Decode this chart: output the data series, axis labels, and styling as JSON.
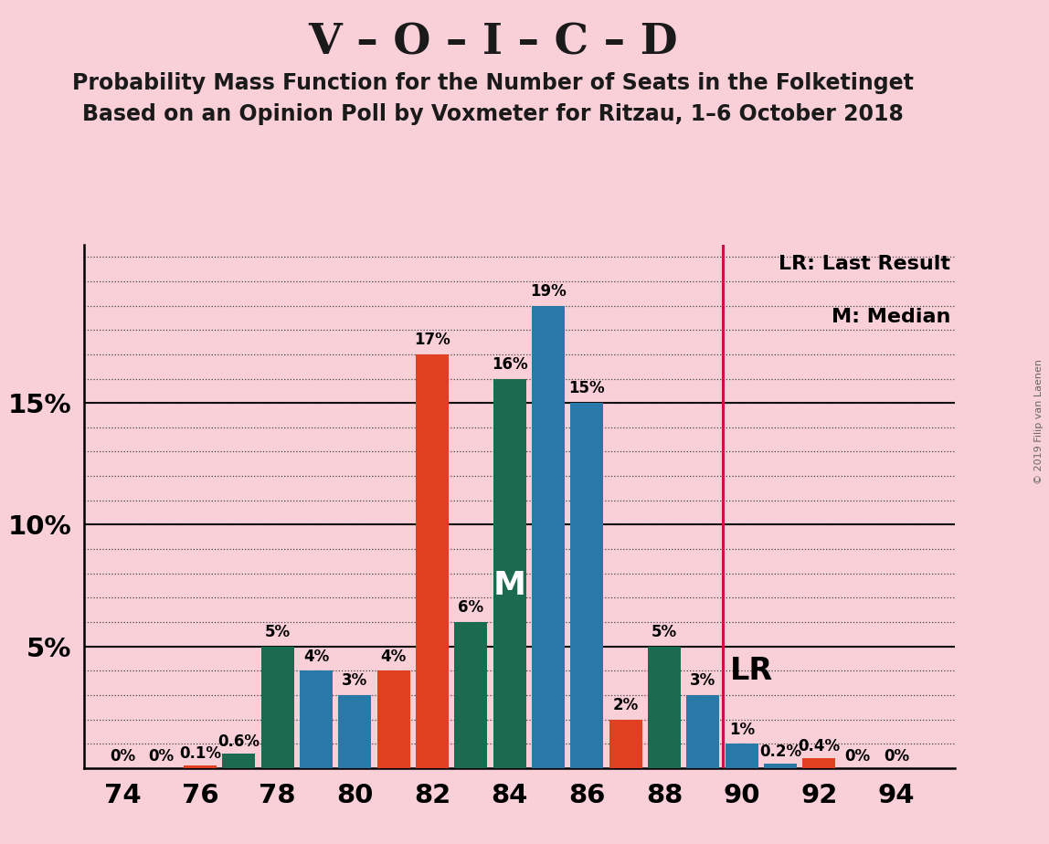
{
  "title": "V – O – I – C – D",
  "subtitle1": "Probability Mass Function for the Number of Seats in the Folketinget",
  "subtitle2": "Based on an Opinion Poll by Voxmeter for Ritzau, 1–6 October 2018",
  "copyright": "© 2019 Filip van Laenen",
  "background_color": "#f9d0d8",
  "bar_positions": [
    74,
    75,
    76,
    77,
    78,
    79,
    80,
    81,
    82,
    83,
    84,
    85,
    86,
    87,
    88,
    89,
    90,
    91,
    92,
    93,
    94
  ],
  "values": [
    0.0,
    0.0,
    0.1,
    0.6,
    5.0,
    4.0,
    3.0,
    4.0,
    17.0,
    6.0,
    16.0,
    19.0,
    15.0,
    2.0,
    5.0,
    3.0,
    1.0,
    0.2,
    0.4,
    0.0,
    0.0
  ],
  "bar_colors": [
    "#2878a8",
    "#2878a8",
    "#e04020",
    "#1a6b50",
    "#1a6b50",
    "#2878a8",
    "#2878a8",
    "#e04020",
    "#e04020",
    "#1a6b50",
    "#1a6b50",
    "#2878a8",
    "#2878a8",
    "#e04020",
    "#1a6b50",
    "#2878a8",
    "#2878a8",
    "#2878a8",
    "#e04020",
    "#2878a8",
    "#2878a8"
  ],
  "lr_line_x": 89.5,
  "median_x": 84,
  "lr_label": "LR",
  "median_label": "M",
  "legend_lr": "LR: Last Result",
  "legend_m": "M: Median",
  "yticks": [
    5,
    10,
    15
  ],
  "ylim": [
    0,
    21.5
  ],
  "xlim": [
    73.0,
    95.5
  ],
  "xticks": [
    74,
    76,
    78,
    80,
    82,
    84,
    86,
    88,
    90,
    92,
    94
  ],
  "title_fontsize": 34,
  "subtitle_fontsize": 17,
  "bar_width": 0.85,
  "label_fontsize": 12,
  "tick_fontsize": 21,
  "ytick_fontsize": 21
}
